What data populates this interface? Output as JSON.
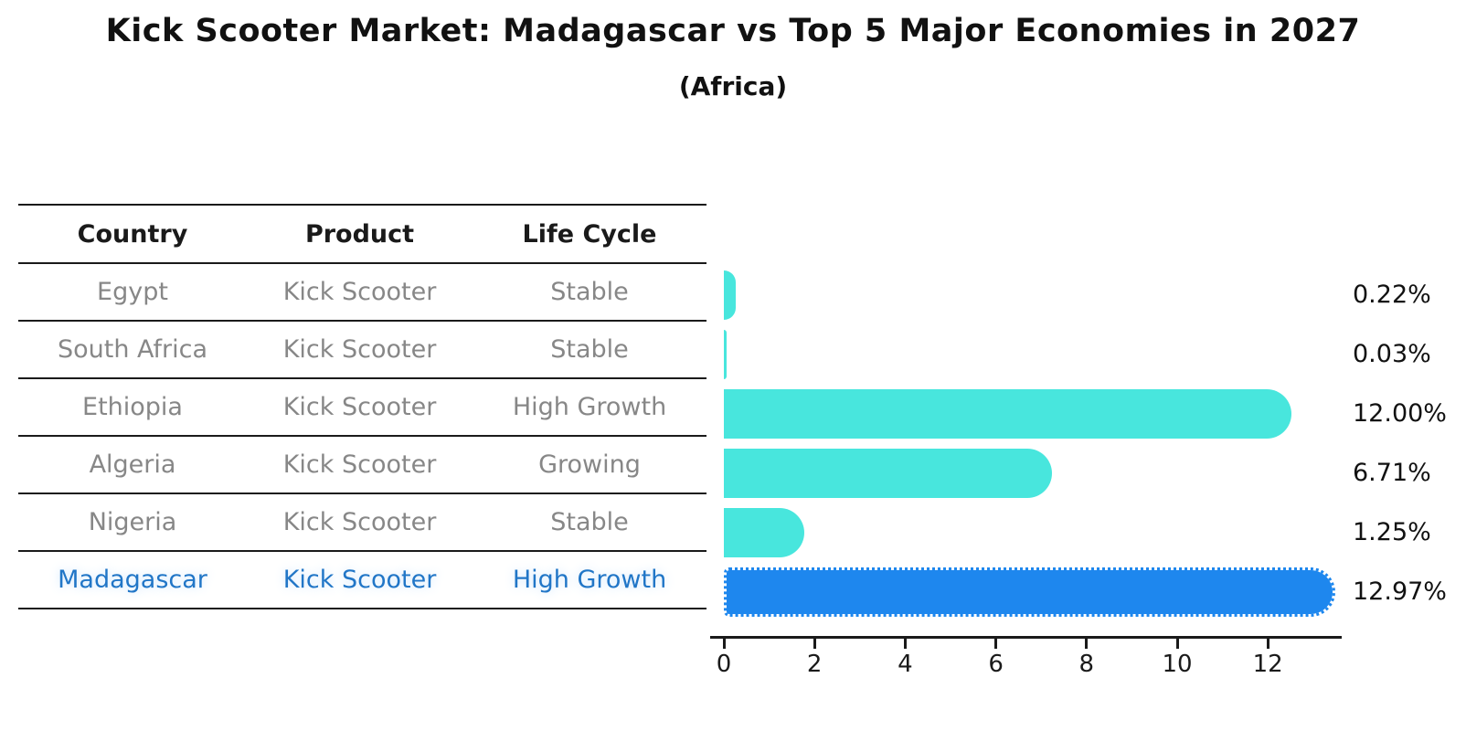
{
  "title": "Kick Scooter Market: Madagascar vs Top 5 Major Economies in 2027",
  "subtitle": "(Africa)",
  "table": {
    "headers": [
      "Country",
      "Product",
      "Life Cycle"
    ],
    "rows": [
      {
        "country": "Egypt",
        "product": "Kick Scooter",
        "life_cycle": "Stable",
        "highlight": false
      },
      {
        "country": "South Africa",
        "product": "Kick Scooter",
        "life_cycle": "Stable",
        "highlight": false
      },
      {
        "country": "Ethiopia",
        "product": "Kick Scooter",
        "life_cycle": "High Growth",
        "highlight": false
      },
      {
        "country": "Algeria",
        "product": "Kick Scooter",
        "life_cycle": "Growing",
        "highlight": false
      },
      {
        "country": "Nigeria",
        "product": "Kick Scooter",
        "life_cycle": "Stable",
        "highlight": true
      }
    ]
  },
  "chart_data": {
    "type": "bar",
    "orientation": "horizontal",
    "categories": [
      "Egypt",
      "South Africa",
      "Ethiopia",
      "Algeria",
      "Nigeria",
      "Madagascar"
    ],
    "values": [
      0.22,
      0.03,
      12.0,
      6.71,
      1.25,
      12.97
    ],
    "value_labels": [
      "0.22%",
      "0.03%",
      "12.00%",
      "6.71%",
      "1.25%",
      "12.97%"
    ],
    "highlight_index": 5,
    "x_ticks": [
      "0",
      "2",
      "4",
      "6",
      "8",
      "10",
      "12"
    ],
    "x_tick_values": [
      0,
      2,
      4,
      6,
      8,
      10,
      12
    ],
    "xlim": [
      0,
      13.6
    ],
    "grid": false,
    "legend": "none",
    "bar_color": "#48e6dd",
    "highlight_bar_color": "#1e87ee",
    "highlight_text_color": "#2176c7",
    "label_color": "#111111",
    "axis_color": "#1a1a1a"
  }
}
